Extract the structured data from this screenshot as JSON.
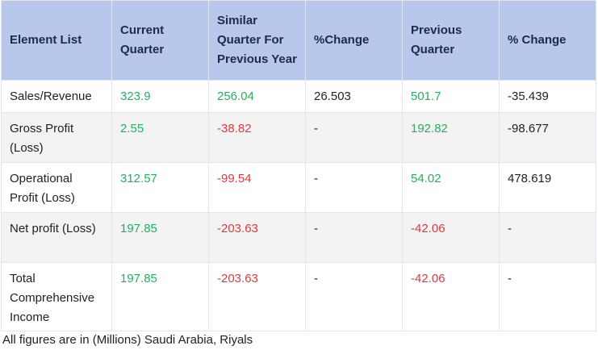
{
  "table": {
    "header": [
      "Element List",
      "Current Quarter",
      "Similar Quarter For Previous Year",
      "%Change",
      "Previous Quarter",
      "% Change"
    ],
    "rows": [
      [
        "Sales/Revenue",
        "323.9",
        "256.04",
        "26.503",
        "501.7",
        "-35.439"
      ],
      [
        "Gross Profit (Loss)",
        "2.55",
        "-38.82",
        "-",
        "192.82",
        "-98.677"
      ],
      [
        "Operational Profit (Loss)",
        "312.57",
        "-99.54",
        "-",
        "54.02",
        "478.619"
      ],
      [
        "Net profit (Loss)",
        "197.85",
        "-203.63",
        "-",
        "-42.06",
        "-"
      ],
      [
        "Total Comprehensive Income",
        "197.85",
        "-203.63",
        "-",
        "-42.06",
        "-"
      ]
    ]
  },
  "footnote": "All figures are in (Millions) Saudi Arabia, Riyals"
}
